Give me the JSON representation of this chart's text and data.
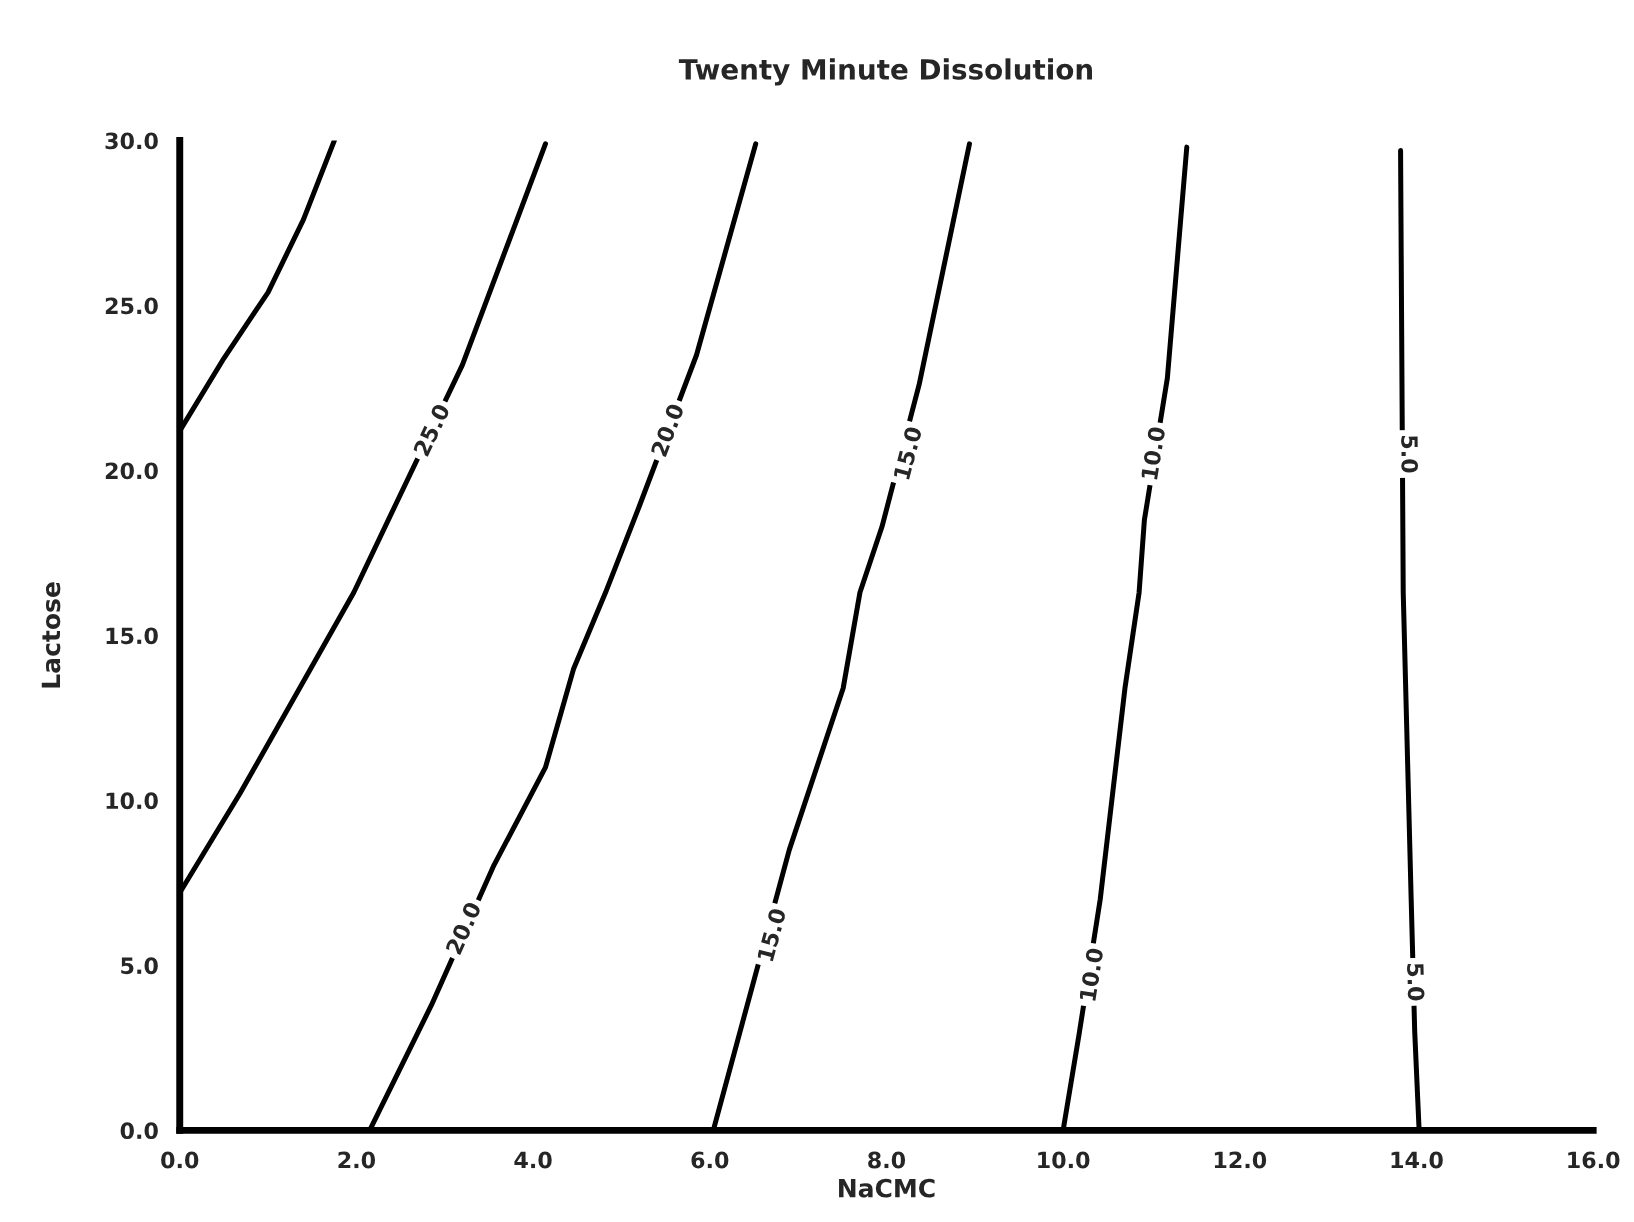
{
  "chart_data": {
    "type": "line",
    "title": "Twenty Minute Dissolution",
    "xlabel": "NaCMC",
    "ylabel": "Lactose",
    "xlim": [
      0,
      16
    ],
    "ylim": [
      0,
      30
    ],
    "xticks": [
      {
        "value": 0,
        "label": "0.0"
      },
      {
        "value": 2,
        "label": "2.0"
      },
      {
        "value": 4,
        "label": "4.0"
      },
      {
        "value": 6,
        "label": "6.0"
      },
      {
        "value": 8,
        "label": "8.0"
      },
      {
        "value": 10,
        "label": "10.0"
      },
      {
        "value": 12,
        "label": "12.0"
      },
      {
        "value": 14,
        "label": "14.0"
      },
      {
        "value": 16,
        "label": "16.0"
      }
    ],
    "yticks": [
      {
        "value": 0,
        "label": "0.0"
      },
      {
        "value": 5,
        "label": "5.0"
      },
      {
        "value": 10,
        "label": "10.0"
      },
      {
        "value": 15,
        "label": "15.0"
      },
      {
        "value": 20,
        "label": "20.0"
      },
      {
        "value": 25,
        "label": "25.0"
      },
      {
        "value": 30,
        "label": "30.0"
      }
    ],
    "series": [
      {
        "color": "#000000",
        "x": [
          0,
          0.5,
          1.0,
          1.4,
          1.75
        ],
        "values": [
          21.2,
          23.4,
          25.4,
          27.6,
          30
        ]
      },
      {
        "color": "#000000",
        "x": [
          0,
          0.68,
          1.97,
          2.45,
          3.2,
          4.14
        ],
        "values": [
          7.2,
          10.2,
          16.3,
          19.0,
          23.2,
          29.9
        ]
      },
      {
        "color": "#000000",
        "x": [
          2.15,
          2.85,
          3.55,
          4.14,
          4.46,
          4.82,
          5.2,
          5.85,
          6.52
        ],
        "values": [
          0,
          3.8,
          8.0,
          11.0,
          14.0,
          16.3,
          18.9,
          23.5,
          29.9
        ]
      },
      {
        "color": "#000000",
        "x": [
          6.04,
          6.9,
          7.51,
          7.7,
          7.95,
          8.37,
          8.94
        ],
        "values": [
          0,
          8.5,
          13.4,
          16.3,
          18.3,
          22.6,
          29.9
        ]
      },
      {
        "color": "#000000",
        "x": [
          10.0,
          10.18,
          10.42,
          10.7,
          10.86,
          10.92,
          11.18,
          11.4
        ],
        "values": [
          0,
          2.9,
          7.0,
          13.4,
          16.3,
          18.5,
          22.8,
          29.8
        ]
      },
      {
        "color": "#000000",
        "x": [
          14.03,
          13.98,
          13.94,
          13.85,
          13.82
        ],
        "values": [
          0,
          3.0,
          7.0,
          16.3,
          29.7
        ]
      }
    ],
    "annotations": [
      {
        "text": "25.0",
        "x": 2.87,
        "y": 21.2
      },
      {
        "text": "20.0",
        "x": 5.54,
        "y": 21.2
      },
      {
        "text": "15.0",
        "x": 8.26,
        "y": 20.5
      },
      {
        "text": "10.0",
        "x": 11.04,
        "y": 20.5
      },
      {
        "text": "5.0",
        "x": 13.9,
        "y": 20.5
      },
      {
        "text": "20.0",
        "x": 3.23,
        "y": 6.1
      },
      {
        "text": "15.0",
        "x": 6.72,
        "y": 5.9
      },
      {
        "text": "10.0",
        "x": 10.34,
        "y": 4.7
      },
      {
        "text": "5.0",
        "x": 13.97,
        "y": 4.5
      }
    ]
  }
}
